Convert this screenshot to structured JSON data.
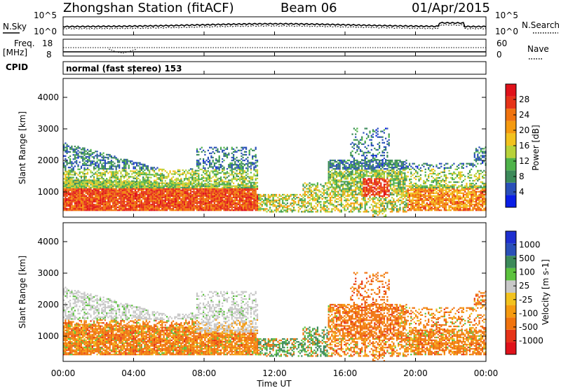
{
  "chart_data": {
    "type": "heatmap",
    "title": "Zhongshan Station (fitACF)",
    "beam": "Beam 06",
    "date": "01/Apr/2015",
    "cpid_label": "CPID",
    "cpid": "normal (fast stereo) 153",
    "xlabel": "Time UT",
    "x_ticks": [
      "00:00",
      "04:00",
      "08:00",
      "12:00",
      "16:00",
      "20:00",
      "00:00"
    ],
    "xlim_hours": [
      0,
      24
    ],
    "noise_panel": {
      "left_label": "N.Sky",
      "right_label": "N.Search",
      "left_ticks": [
        "10^5",
        "10^0"
      ],
      "right_ticks": [
        "10^5",
        "10^0"
      ]
    },
    "freq_panel": {
      "left_label": "Freq.",
      "left_unit": "[MHz]",
      "right_label": "Nave",
      "left_ticks": [
        "18",
        "8"
      ],
      "right_ticks": [
        "60",
        "0"
      ]
    },
    "power_panel": {
      "ylabel": "Slant Range [km]",
      "y_ticks": [
        "4000",
        "3000",
        "2000",
        "1000"
      ],
      "ylim_km": [
        200,
        4600
      ],
      "colorbar_label": "Power [dB]",
      "colorbar_ticks": [
        "28",
        "24",
        "20",
        "16",
        "12",
        "8",
        "4"
      ],
      "range_db": [
        0,
        32
      ]
    },
    "velocity_panel": {
      "ylabel": "Slant Range [km]",
      "y_ticks": [
        "4000",
        "3000",
        "2000",
        "1000"
      ],
      "ylim_km": [
        200,
        4600
      ],
      "colorbar_label": "Velocity [m s-1]",
      "colorbar_ticks": [
        "1000",
        "500",
        "100",
        "25",
        "-25",
        "-100",
        "-500",
        "-1000"
      ]
    },
    "colors": {
      "power": [
        "#0a1ee6",
        "#2a50b8",
        "#3c8a5a",
        "#4fb34a",
        "#b8d23a",
        "#f2c21e",
        "#f59a10",
        "#f0730e",
        "#e63318",
        "#e0121a"
      ],
      "velocity": [
        "#e0121a",
        "#e63318",
        "#f0730e",
        "#f59a10",
        "#f2c21e",
        "#c8c8c8",
        "#5cc23e",
        "#3c8a5a",
        "#2a50b8",
        "#1e2fd0"
      ]
    }
  }
}
